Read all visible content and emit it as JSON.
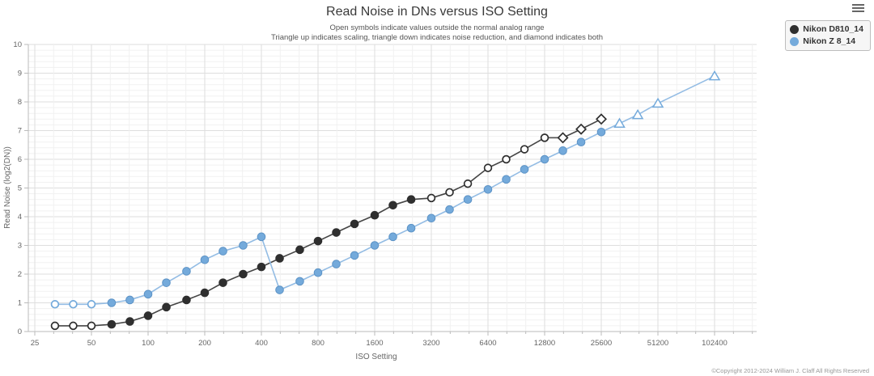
{
  "header": {
    "title": "Read Noise in DNs versus ISO Setting",
    "subtitle_line1": "Open symbols indicate values outside the normal analog range",
    "subtitle_line2": "Triangle up indicates scaling, triangle down indicates noise reduction, and diamond indicates both"
  },
  "footer": {
    "copyright": "©Copyright 2012-2024 William J. Claff All Rights Reserved"
  },
  "chart_data": {
    "type": "line",
    "title": "Read Noise in DNs versus ISO Setting",
    "xlabel": "ISO Setting",
    "ylabel": "Read Noise (log2(DN))",
    "x_scale": "log2",
    "xlim": [
      25,
      204800
    ],
    "ylim": [
      0,
      10
    ],
    "x_ticks": [
      25,
      50,
      100,
      200,
      400,
      800,
      1600,
      3200,
      6400,
      12800,
      25600,
      51200,
      102400
    ],
    "y_ticks": [
      0,
      1,
      2,
      3,
      4,
      5,
      6,
      7,
      8,
      9,
      10
    ],
    "grid": "on",
    "legend_position": "top-right",
    "symbol_legend": {
      "c": "filled circle (normal analog range)",
      "o": "open circle (outside normal analog range)",
      "d": "open diamond (scaling and noise reduction)",
      "t": "open triangle up (scaling)"
    },
    "series": [
      {
        "name": "Nikon D810_14",
        "color": "#2f2f2f",
        "stroke": "#2f2f2f",
        "line_color": "#454545",
        "points": [
          [
            32,
            0.2,
            "o"
          ],
          [
            40,
            0.2,
            "o"
          ],
          [
            50,
            0.2,
            "o"
          ],
          [
            64,
            0.25,
            "c"
          ],
          [
            80,
            0.35,
            "c"
          ],
          [
            100,
            0.55,
            "c"
          ],
          [
            125,
            0.85,
            "c"
          ],
          [
            160,
            1.1,
            "c"
          ],
          [
            200,
            1.35,
            "c"
          ],
          [
            250,
            1.7,
            "c"
          ],
          [
            320,
            2.0,
            "c"
          ],
          [
            400,
            2.25,
            "c"
          ],
          [
            500,
            2.55,
            "c"
          ],
          [
            640,
            2.85,
            "c"
          ],
          [
            800,
            3.15,
            "c"
          ],
          [
            1000,
            3.45,
            "c"
          ],
          [
            1250,
            3.75,
            "c"
          ],
          [
            1600,
            4.05,
            "c"
          ],
          [
            2000,
            4.4,
            "c"
          ],
          [
            2500,
            4.6,
            "c"
          ],
          [
            3200,
            4.65,
            "o"
          ],
          [
            4000,
            4.85,
            "o"
          ],
          [
            5000,
            5.15,
            "o"
          ],
          [
            6400,
            5.7,
            "o"
          ],
          [
            8000,
            6.0,
            "o"
          ],
          [
            10000,
            6.35,
            "o"
          ],
          [
            12800,
            6.75,
            "o"
          ],
          [
            16000,
            6.75,
            "d"
          ],
          [
            20000,
            7.05,
            "d"
          ],
          [
            25600,
            7.4,
            "d"
          ]
        ]
      },
      {
        "name": "Nikon Z 8_14",
        "color": "#74aadb",
        "stroke": "#5d93c6",
        "line_color": "#93bce4",
        "points": [
          [
            32,
            0.95,
            "o"
          ],
          [
            40,
            0.95,
            "o"
          ],
          [
            50,
            0.95,
            "o"
          ],
          [
            64,
            1.0,
            "c"
          ],
          [
            80,
            1.1,
            "c"
          ],
          [
            100,
            1.3,
            "c"
          ],
          [
            125,
            1.7,
            "c"
          ],
          [
            160,
            2.1,
            "c"
          ],
          [
            200,
            2.5,
            "c"
          ],
          [
            250,
            2.8,
            "c"
          ],
          [
            320,
            3.0,
            "c"
          ],
          [
            400,
            3.3,
            "c"
          ],
          [
            500,
            1.45,
            "c"
          ],
          [
            640,
            1.75,
            "c"
          ],
          [
            800,
            2.05,
            "c"
          ],
          [
            1000,
            2.35,
            "c"
          ],
          [
            1250,
            2.65,
            "c"
          ],
          [
            1600,
            3.0,
            "c"
          ],
          [
            2000,
            3.3,
            "c"
          ],
          [
            2500,
            3.6,
            "c"
          ],
          [
            3200,
            3.95,
            "c"
          ],
          [
            4000,
            4.25,
            "c"
          ],
          [
            5000,
            4.6,
            "c"
          ],
          [
            6400,
            4.95,
            "c"
          ],
          [
            8000,
            5.3,
            "c"
          ],
          [
            10000,
            5.65,
            "c"
          ],
          [
            12800,
            6.0,
            "c"
          ],
          [
            16000,
            6.3,
            "c"
          ],
          [
            20000,
            6.6,
            "c"
          ],
          [
            25600,
            6.95,
            "c"
          ],
          [
            32000,
            7.25,
            "t"
          ],
          [
            40000,
            7.55,
            "t"
          ],
          [
            51200,
            7.95,
            "t"
          ],
          [
            102400,
            8.9,
            "t"
          ]
        ]
      }
    ]
  }
}
